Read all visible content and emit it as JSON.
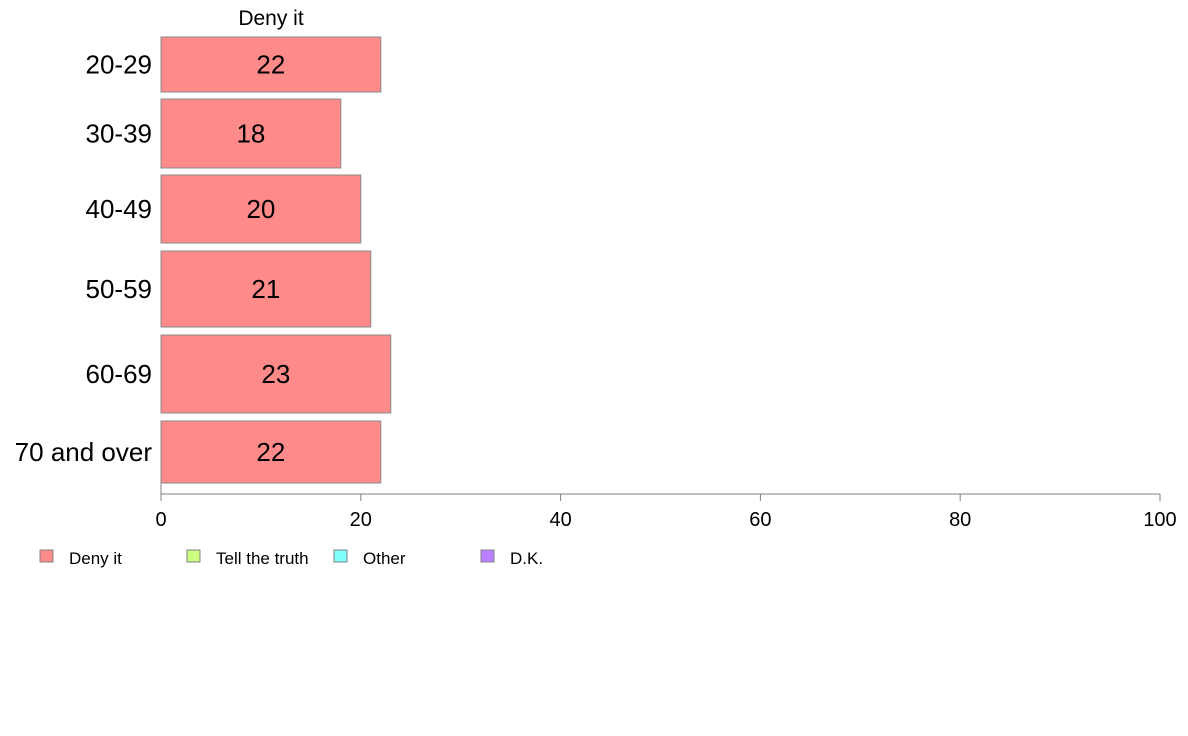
{
  "chart_data": {
    "type": "bar",
    "orientation": "horizontal",
    "title": "Deny it",
    "categories": [
      "20-29",
      "30-39",
      "40-49",
      "50-59",
      "60-69",
      "70 and over"
    ],
    "series": [
      {
        "name": "Deny it",
        "values": [
          22,
          18,
          20,
          21,
          23,
          22
        ],
        "color": "#ff8a8a"
      }
    ],
    "xlim": [
      0,
      100
    ],
    "xticks": [
      0,
      20,
      40,
      60,
      80,
      100
    ],
    "grid": false,
    "legend": {
      "placement": "bottom-left",
      "entries": [
        {
          "label": "Deny it",
          "color": "#ff8a8a"
        },
        {
          "label": "Tell the truth",
          "color": "#ccff80"
        },
        {
          "label": "Other",
          "color": "#80ffff"
        },
        {
          "label": "D.K.",
          "color": "#b980ff"
        }
      ]
    }
  }
}
